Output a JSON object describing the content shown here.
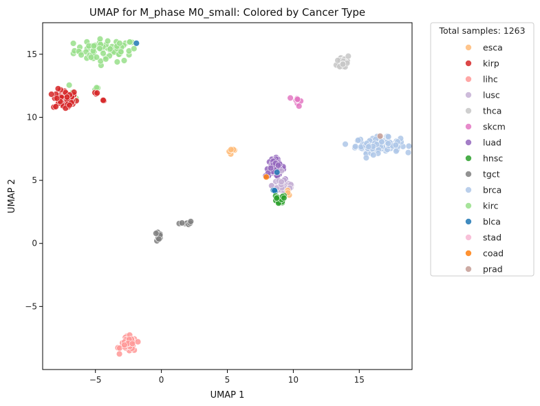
{
  "chart_data": {
    "type": "scatter",
    "title": "UMAP for M_phase M0_small: Colored by Cancer Type",
    "xlabel": "UMAP 1",
    "ylabel": "UMAP 2",
    "xlim": [
      -9,
      19
    ],
    "ylim": [
      -10,
      17.5
    ],
    "xticks": [
      -5,
      0,
      5,
      10,
      15
    ],
    "yticks": [
      -5,
      0,
      5,
      10,
      15
    ],
    "xtick_labels": [
      "−5",
      "0",
      "5",
      "10",
      "15"
    ],
    "ytick_labels": [
      "−5",
      "0",
      "5",
      "10",
      "15"
    ],
    "grid": false,
    "legend": {
      "title": "Total samples: 1263",
      "placement": "outside-upper-right",
      "entries": [
        {
          "name": "esca",
          "color": "#ffbb78"
        },
        {
          "name": "kirp",
          "color": "#d62728"
        },
        {
          "name": "lihc",
          "color": "#ff9896"
        },
        {
          "name": "lusc",
          "color": "#c5b0d5"
        },
        {
          "name": "thca",
          "color": "#c7c7c7"
        },
        {
          "name": "skcm",
          "color": "#e377c2"
        },
        {
          "name": "luad",
          "color": "#9467bd"
        },
        {
          "name": "hnsc",
          "color": "#2ca02c"
        },
        {
          "name": "tgct",
          "color": "#7f7f7f"
        },
        {
          "name": "brca",
          "color": "#aec7e8"
        },
        {
          "name": "kirc",
          "color": "#98df8a"
        },
        {
          "name": "blca",
          "color": "#1f77b4"
        },
        {
          "name": "stad",
          "color": "#f7b6d2"
        },
        {
          "name": "coad",
          "color": "#ff7f0e"
        },
        {
          "name": "prad",
          "color": "#c49c94"
        }
      ]
    },
    "clusters": [
      {
        "name": "kirc",
        "cx": -4.2,
        "cy": 15.3,
        "sx": 1.2,
        "sy": 0.45,
        "n": 70
      },
      {
        "name": "kirc",
        "cx": -6.8,
        "cy": 11.8,
        "sx": 0.3,
        "sy": 0.3,
        "n": 6
      },
      {
        "name": "kirc",
        "cx": -4.8,
        "cy": 12.2,
        "sx": 0.2,
        "sy": 0.1,
        "n": 3
      },
      {
        "name": "blca",
        "cx": -2.0,
        "cy": 15.9,
        "sx": 0.05,
        "sy": 0.05,
        "n": 1
      },
      {
        "name": "kirp",
        "cx": -7.3,
        "cy": 11.4,
        "sx": 0.45,
        "sy": 0.4,
        "n": 55
      },
      {
        "name": "kirp",
        "cx": -5.0,
        "cy": 11.9,
        "sx": 0.1,
        "sy": 0.05,
        "n": 3
      },
      {
        "name": "kirp",
        "cx": -4.4,
        "cy": 11.3,
        "sx": 0.05,
        "sy": 0.05,
        "n": 2
      },
      {
        "name": "thca",
        "cx": 13.8,
        "cy": 14.4,
        "sx": 0.25,
        "sy": 0.3,
        "n": 30
      },
      {
        "name": "skcm",
        "cx": 10.3,
        "cy": 11.3,
        "sx": 0.15,
        "sy": 0.2,
        "n": 8
      },
      {
        "name": "brca",
        "cx": 16.4,
        "cy": 7.8,
        "sx": 0.85,
        "sy": 0.3,
        "n": 110
      },
      {
        "name": "prad",
        "cx": 16.5,
        "cy": 8.5,
        "sx": 0.05,
        "sy": 0.05,
        "n": 1
      },
      {
        "name": "esca",
        "cx": 5.5,
        "cy": 7.3,
        "sx": 0.25,
        "sy": 0.1,
        "n": 5
      },
      {
        "name": "luad",
        "cx": 8.6,
        "cy": 6.0,
        "sx": 0.35,
        "sy": 0.35,
        "n": 45
      },
      {
        "name": "lusc",
        "cx": 9.3,
        "cy": 4.6,
        "sx": 0.45,
        "sy": 0.35,
        "n": 35
      },
      {
        "name": "blca",
        "cx": 8.6,
        "cy": 4.2,
        "sx": 0.15,
        "sy": 0.05,
        "n": 3
      },
      {
        "name": "blca",
        "cx": 8.8,
        "cy": 5.6,
        "sx": 0.05,
        "sy": 0.05,
        "n": 1
      },
      {
        "name": "coad",
        "cx": 7.9,
        "cy": 5.2,
        "sx": 0.05,
        "sy": 0.05,
        "n": 1
      },
      {
        "name": "esca",
        "cx": 9.6,
        "cy": 4.0,
        "sx": 0.1,
        "sy": 0.1,
        "n": 3
      },
      {
        "name": "hnsc",
        "cx": 8.9,
        "cy": 3.4,
        "sx": 0.25,
        "sy": 0.25,
        "n": 14
      },
      {
        "name": "tgct",
        "cx": -0.2,
        "cy": 0.5,
        "sx": 0.15,
        "sy": 0.2,
        "n": 10
      },
      {
        "name": "tgct",
        "cx": 1.8,
        "cy": 1.55,
        "sx": 0.3,
        "sy": 0.12,
        "n": 8
      },
      {
        "name": "lihc",
        "cx": -2.5,
        "cy": -8.0,
        "sx": 0.3,
        "sy": 0.3,
        "n": 40
      }
    ]
  }
}
